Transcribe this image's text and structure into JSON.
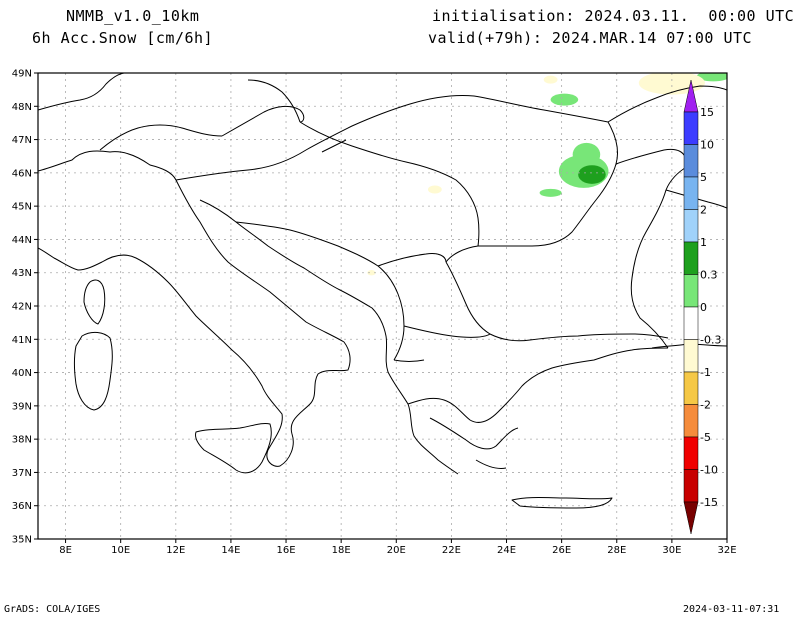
{
  "header": {
    "model": "NMMB_v1.0_10km",
    "variable": "6h Acc.Snow [cm/6h]",
    "initialisation": "initialisation: 2024.03.11.  00:00 UTC",
    "valid": "valid(+79h): 2024.MAR.14 07:00 UTC"
  },
  "footer": {
    "left": "GrADS: COLA/IGES",
    "right": "2024-03-11-07:31"
  },
  "map": {
    "lon_range": [
      7,
      32
    ],
    "lat_range": [
      35,
      49
    ],
    "lon_ticks": [
      "8E",
      "10E",
      "12E",
      "14E",
      "16E",
      "18E",
      "20E",
      "22E",
      "24E",
      "26E",
      "28E",
      "30E",
      "32E"
    ],
    "lat_ticks": [
      "35N",
      "36N",
      "37N",
      "38N",
      "39N",
      "40N",
      "41N",
      "42N",
      "43N",
      "44N",
      "45N",
      "46N",
      "47N",
      "48N",
      "49N"
    ],
    "grid": true
  },
  "colorbar": {
    "labels": [
      "15",
      "10",
      "5",
      "2",
      "1",
      "0.3",
      "0",
      "-0.3",
      "-1",
      "-2",
      "-5",
      "-10",
      "-15"
    ],
    "colors": [
      "#a020f0",
      "#3c3cff",
      "#5a8cdc",
      "#78b4f0",
      "#a0d2fa",
      "#1ea01e",
      "#78e678",
      "#ffffff",
      "#fffad2",
      "#f5c846",
      "#f58c3c",
      "#f00000",
      "#c80000",
      "#780000"
    ]
  },
  "snow_areas": [
    {
      "level": "0.3",
      "color": "#78e678",
      "lon": 26.8,
      "lat": 46.05,
      "rlon": 0.9,
      "rlat": 0.5
    },
    {
      "level": "0.3",
      "color": "#78e678",
      "lon": 26.9,
      "lat": 46.55,
      "rlon": 0.5,
      "rlat": 0.35
    },
    {
      "level": "1",
      "color": "#1ea01e",
      "lon": 27.1,
      "lat": 45.95,
      "rlon": 0.5,
      "rlat": 0.28
    },
    {
      "level": "0.3",
      "color": "#78e678",
      "lon": 26.1,
      "lat": 48.2,
      "rlon": 0.5,
      "rlat": 0.18
    },
    {
      "level": "0.3",
      "color": "#78e678",
      "lon": 25.6,
      "lat": 45.4,
      "rlon": 0.4,
      "rlat": 0.12
    },
    {
      "level": "0.3",
      "color": "#78e678",
      "lon": 31.5,
      "lat": 48.9,
      "rlon": 0.6,
      "rlat": 0.15
    },
    {
      "level": "-0.3",
      "color": "#fffad2",
      "lon": 30.0,
      "lat": 48.7,
      "rlon": 1.2,
      "rlat": 0.35
    },
    {
      "level": "-0.3",
      "color": "#fffad2",
      "lon": 25.6,
      "lat": 48.8,
      "rlon": 0.25,
      "rlat": 0.12
    },
    {
      "level": "-0.3",
      "color": "#fffad2",
      "lon": 21.4,
      "lat": 45.5,
      "rlon": 0.25,
      "rlat": 0.12
    },
    {
      "level": "-0.3",
      "color": "#fffad2",
      "lon": 19.1,
      "lat": 43.0,
      "rlon": 0.15,
      "rlat": 0.08
    }
  ]
}
